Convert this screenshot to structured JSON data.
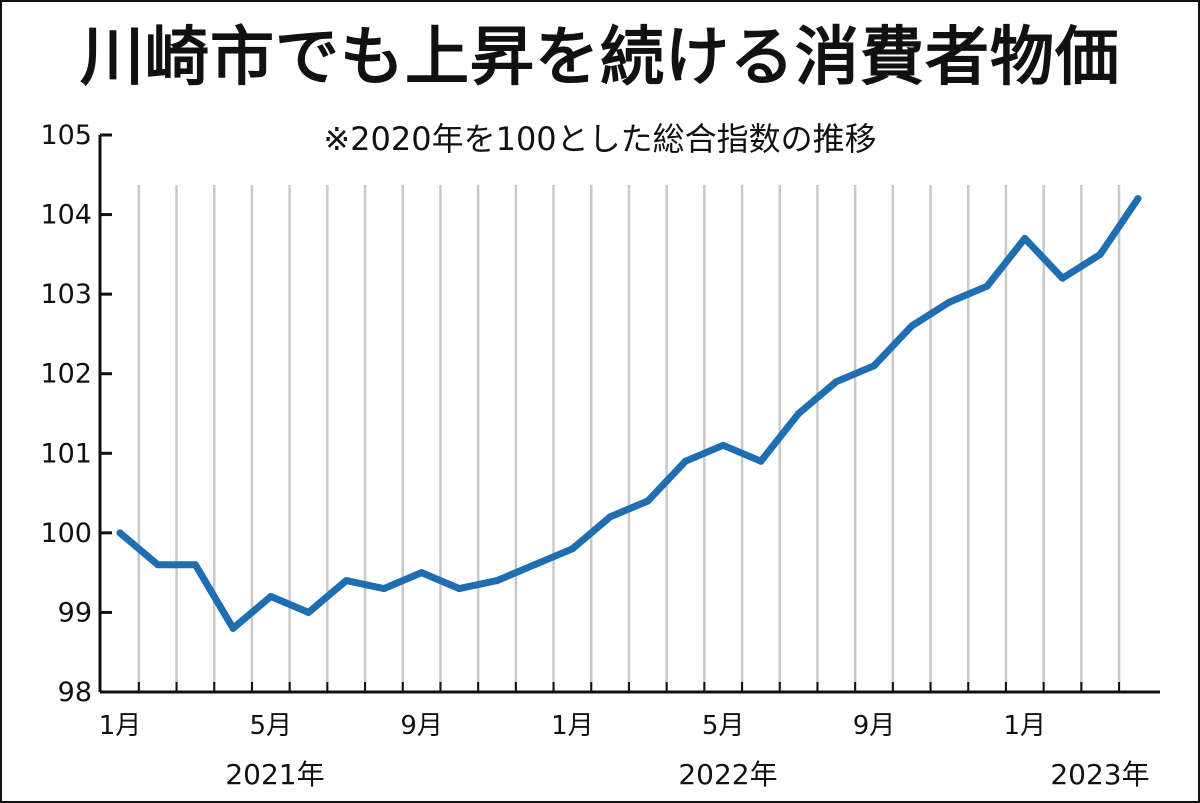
{
  "chart_data": {
    "type": "line",
    "title": "川崎市でも上昇を続ける消費者物価",
    "subtitle": "※2020年を100とした総合指数の推移",
    "ylim": [
      98,
      105
    ],
    "y_ticks": [
      "105",
      "104",
      "103",
      "102",
      "101",
      "100",
      "99",
      "98"
    ],
    "x_tick_labels": [
      {
        "index": 0,
        "label": "1月"
      },
      {
        "index": 4,
        "label": "5月"
      },
      {
        "index": 8,
        "label": "9月"
      },
      {
        "index": 12,
        "label": "1月"
      },
      {
        "index": 16,
        "label": "5月"
      },
      {
        "index": 20,
        "label": "9月"
      },
      {
        "index": 24,
        "label": "1月"
      }
    ],
    "year_labels": [
      {
        "label": "2021年",
        "position": "under-2021"
      },
      {
        "label": "2022年",
        "position": "under-2022"
      },
      {
        "label": "2023年",
        "position": "under-2023"
      }
    ],
    "x": [
      "2021-01",
      "2021-02",
      "2021-03",
      "2021-04",
      "2021-05",
      "2021-06",
      "2021-07",
      "2021-08",
      "2021-09",
      "2021-10",
      "2021-11",
      "2021-12",
      "2022-01",
      "2022-02",
      "2022-03",
      "2022-04",
      "2022-05",
      "2022-06",
      "2022-07",
      "2022-08",
      "2022-09",
      "2022-10",
      "2022-11",
      "2022-12",
      "2023-01",
      "2023-02",
      "2023-03",
      "2023-04"
    ],
    "series": [
      {
        "values": [
          100.0,
          99.6,
          99.6,
          98.8,
          99.2,
          99.0,
          99.4,
          99.3,
          99.5,
          99.3,
          99.4,
          99.6,
          99.8,
          100.2,
          100.4,
          100.9,
          101.1,
          100.9,
          101.5,
          101.9,
          102.1,
          102.6,
          102.9,
          103.1,
          103.7,
          103.2,
          103.5,
          104.2
        ],
        "color": "#1f6db2"
      }
    ],
    "grid": true,
    "grid_orientation": "vertical",
    "grid_color": "#c8c8c8",
    "axis_color": "#111111"
  }
}
